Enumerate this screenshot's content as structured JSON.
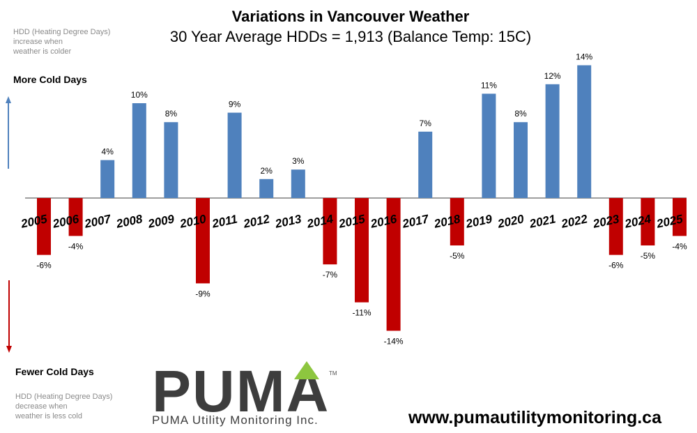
{
  "chart_data": {
    "type": "bar",
    "title": "Variations  in Vancouver Weather",
    "subtitle": "30 Year Average HDDs = 1,913  (Balance Temp: 15C)",
    "categories": [
      "2005",
      "2006",
      "2007",
      "2008",
      "2009",
      "2010",
      "2011",
      "2012",
      "2013",
      "2014",
      "2015",
      "2016",
      "2017",
      "2018",
      "2019",
      "2020",
      "2021",
      "2022",
      "2023",
      "2024",
      "2025"
    ],
    "values": [
      -6,
      -4,
      4,
      10,
      8,
      -9,
      9,
      2,
      3,
      -7,
      -11,
      -14,
      7,
      -5,
      11,
      8,
      12,
      14,
      -6,
      -5,
      -4
    ],
    "data_labels": [
      "-6%",
      "-4%",
      "4%",
      "10%",
      "8%",
      "-9%",
      "9%",
      "2%",
      "3%",
      "-7%",
      "-11%",
      "-14%",
      "7%",
      "-5%",
      "11%",
      "8%",
      "12%",
      "14%",
      "-6%",
      "-5%",
      "-4%"
    ],
    "unit": "%",
    "grid": false,
    "colors": {
      "positive": "#4f81bd",
      "negative": "#c00000",
      "axis": "#7f7f7f"
    }
  },
  "annotations": {
    "top_note": [
      "HDD (Heating Degree Days)",
      "increase when",
      "weather is colder"
    ],
    "more_label": "More Cold Days",
    "fewer_label": "Fewer Cold Days",
    "bottom_note": [
      "HDD (Heating Degree Days)",
      "decrease when",
      "weather is less cold"
    ],
    "arrow_up_color": "#4f81bd",
    "arrow_down_color": "#c00000"
  },
  "branding": {
    "logo_word": "PUMA",
    "trademark": "TM",
    "tagline": "PUMA Utility Monitoring Inc.",
    "logo_accent_color": "#8dc63f",
    "website": "www.pumautilitymonitoring.ca"
  }
}
